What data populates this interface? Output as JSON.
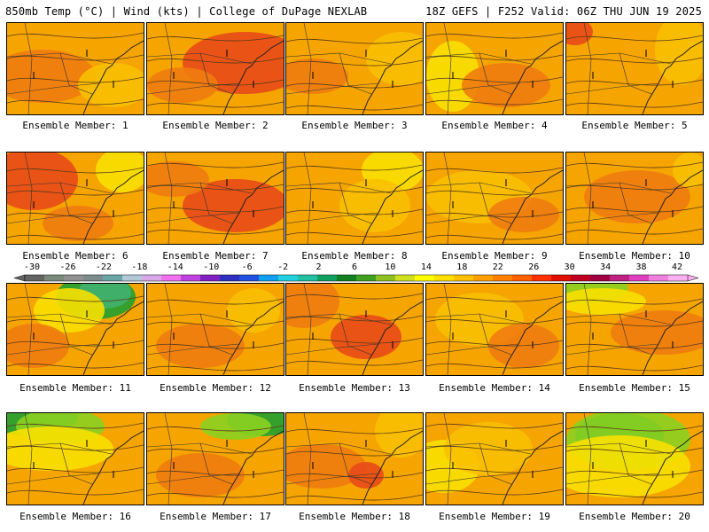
{
  "header": {
    "title": "850mb Temp (°C) | Wind (kts) | College of DuPage NEXLAB",
    "run_info": "18Z GEFS | F252 Valid: 06Z THU JUN 19 2025"
  },
  "colorbar": {
    "tick_labels": [
      "-30",
      "-26",
      "-22",
      "-18",
      "-14",
      "-10",
      "-6",
      "-2",
      "2",
      "6",
      "10",
      "14",
      "18",
      "22",
      "26",
      "30",
      "34",
      "38",
      "42"
    ],
    "colors": [
      "#646464",
      "#7a8a7a",
      "#909090",
      "#7c8c8c",
      "#6aa6a6",
      "#b0c8d8",
      "#d8a8e8",
      "#f070f0",
      "#c040e0",
      "#8020c0",
      "#3030c0",
      "#2050e0",
      "#10a0f0",
      "#20d0e0",
      "#20c0a0",
      "#10a060",
      "#108020",
      "#40a020",
      "#90c020",
      "#d0e020",
      "#ffff00",
      "#ffe000",
      "#ffc000",
      "#ffa000",
      "#ff8000",
      "#ff6000",
      "#ff3000",
      "#e01000",
      "#c00020",
      "#a00040",
      "#c02080",
      "#e040c0",
      "#f080e0",
      "#f8b0f0"
    ]
  },
  "map_colors": {
    "base": "#f6a400",
    "warm": "#f07c10",
    "hot": "#e84a18",
    "cool": "#f8c000",
    "cooler": "#f8e000",
    "green": "#8cd020",
    "deepgreen": "#20a030",
    "teal": "#40b070"
  },
  "members": [
    {
      "label": "Ensemble Member: 1"
    },
    {
      "label": "Ensemble Member: 2"
    },
    {
      "label": "Ensemble Member: 3"
    },
    {
      "label": "Ensemble Member: 4"
    },
    {
      "label": "Ensemble Member: 5"
    },
    {
      "label": "Ensemble Member: 6"
    },
    {
      "label": "Ensemble Member: 7"
    },
    {
      "label": "Ensemble Member: 8"
    },
    {
      "label": "Ensemble Member: 9"
    },
    {
      "label": "Ensemble Member: 10"
    },
    {
      "label": "Ensemble Member: 11"
    },
    {
      "label": "Ensemble Member: 12"
    },
    {
      "label": "Ensemble Member: 13"
    },
    {
      "label": "Ensemble Member: 14"
    },
    {
      "label": "Ensemble Member: 15"
    },
    {
      "label": "Ensemble Member: 16"
    },
    {
      "label": "Ensemble Member: 17"
    },
    {
      "label": "Ensemble Member: 18"
    },
    {
      "label": "Ensemble Member: 19"
    },
    {
      "label": "Ensemble Member: 20"
    }
  ]
}
